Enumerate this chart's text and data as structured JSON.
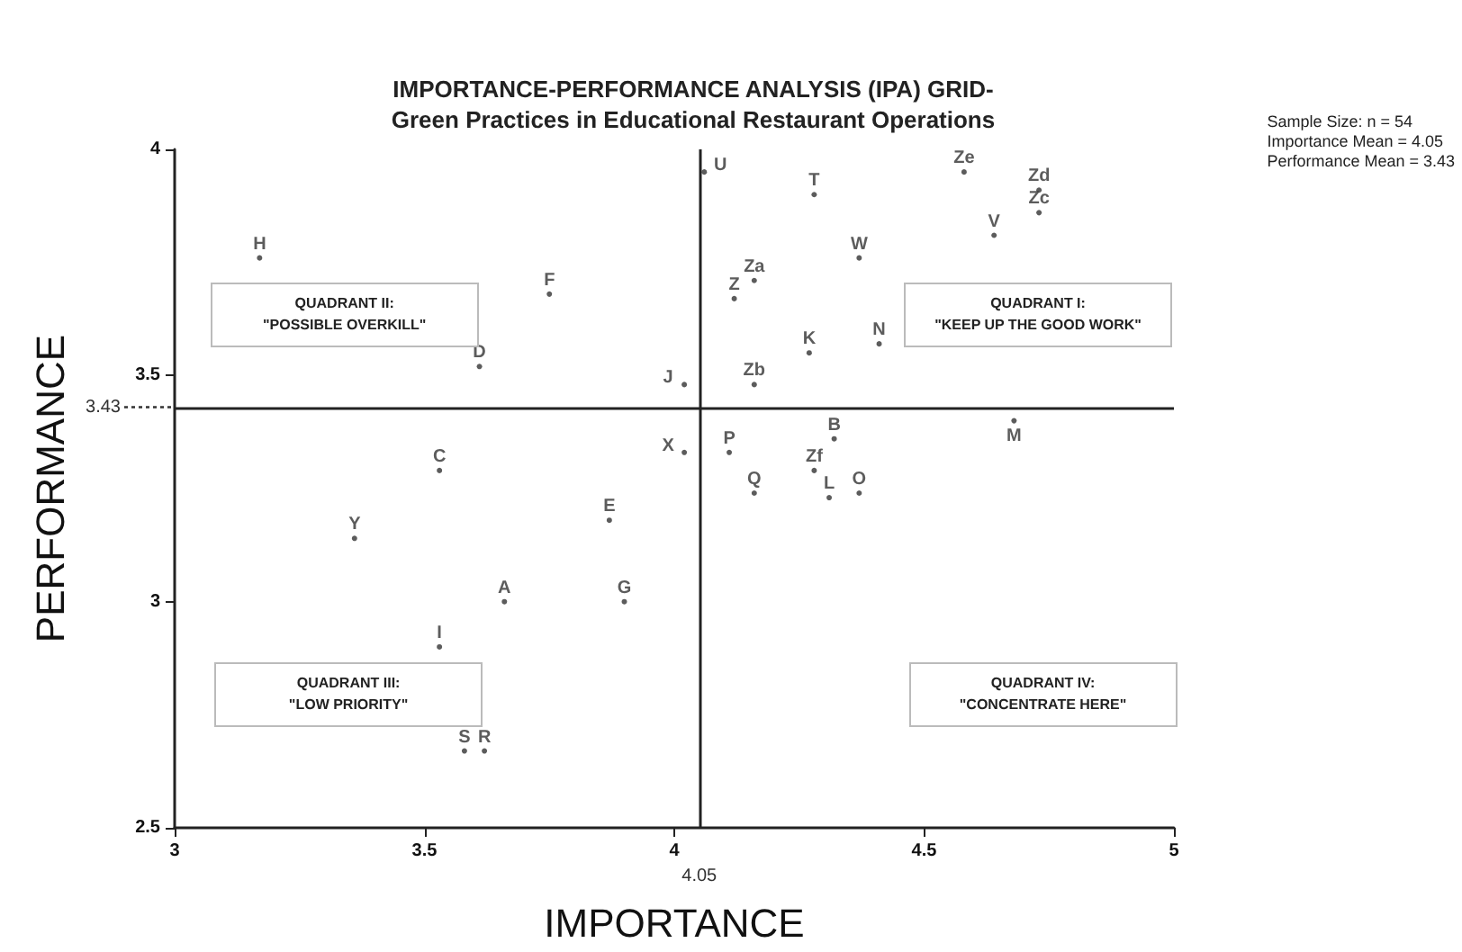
{
  "chart_data": {
    "type": "scatter",
    "title": "IMPORTANCE-PERFORMANCE ANALYSIS (IPA) GRID-",
    "subtitle": "Green Practices in Educational Restaurant Operations",
    "xlabel": "IMPORTANCE",
    "ylabel": "PERFORMANCE",
    "x": [
      3.17,
      3.75,
      3.61,
      4.02,
      4.02,
      3.53,
      4.06,
      4.28,
      4.58,
      4.73,
      4.73,
      4.64,
      4.37,
      4.16,
      4.12,
      4.27,
      4.41,
      4.16,
      4.68,
      4.11,
      4.32,
      4.28,
      4.16,
      4.31,
      4.37,
      3.36,
      3.87,
      3.66,
      3.9,
      3.53,
      3.58,
      3.62
    ],
    "values": [
      3.76,
      3.68,
      3.52,
      3.48,
      3.33,
      3.29,
      3.95,
      3.9,
      3.95,
      3.91,
      3.86,
      3.81,
      3.76,
      3.71,
      3.67,
      3.55,
      3.57,
      3.48,
      3.4,
      3.33,
      3.36,
      3.29,
      3.24,
      3.23,
      3.24,
      3.14,
      3.18,
      3,
      3,
      2.9,
      2.67,
      2.67
    ],
    "value_labels": [
      "H",
      "F",
      "D",
      "J",
      "X",
      "C",
      "U",
      "T",
      "Ze",
      "Zd",
      "Zc",
      "V",
      "W",
      "Za",
      "Z",
      "K",
      "N",
      "Zb",
      "M",
      "P",
      "B",
      "Zf",
      "Q",
      "L",
      "O",
      "Y",
      "E",
      "A",
      "G",
      "I",
      "S",
      "R"
    ],
    "color": "#333333",
    "marker": "circle",
    "grid": false,
    "xlim": [
      3,
      5
    ],
    "ylim": [
      2.5,
      4
    ],
    "xticks": [
      3,
      3.5,
      4,
      4.5,
      5
    ],
    "yticks": [
      2.5,
      3,
      3.5,
      4
    ],
    "ref_lines": [
      {
        "axis": "x",
        "value": 4.05,
        "label": "4.05"
      },
      {
        "axis": "y",
        "value": 3.43,
        "label": "3.43"
      }
    ],
    "annotations": [
      "QUADRANT II:\n\"POSSIBLE OVERKILL\"",
      "QUADRANT I:\n\"KEEP UP THE GOOD WORK\"",
      "QUADRANT III:\n\"LOW PRIORITY\"",
      "QUADRANT IV:\n\"CONCENTRATE HERE\"",
      "Sample Size: n = 54\nImportance Mean = 4.05\nPerformance Mean = 3.43"
    ]
  }
}
